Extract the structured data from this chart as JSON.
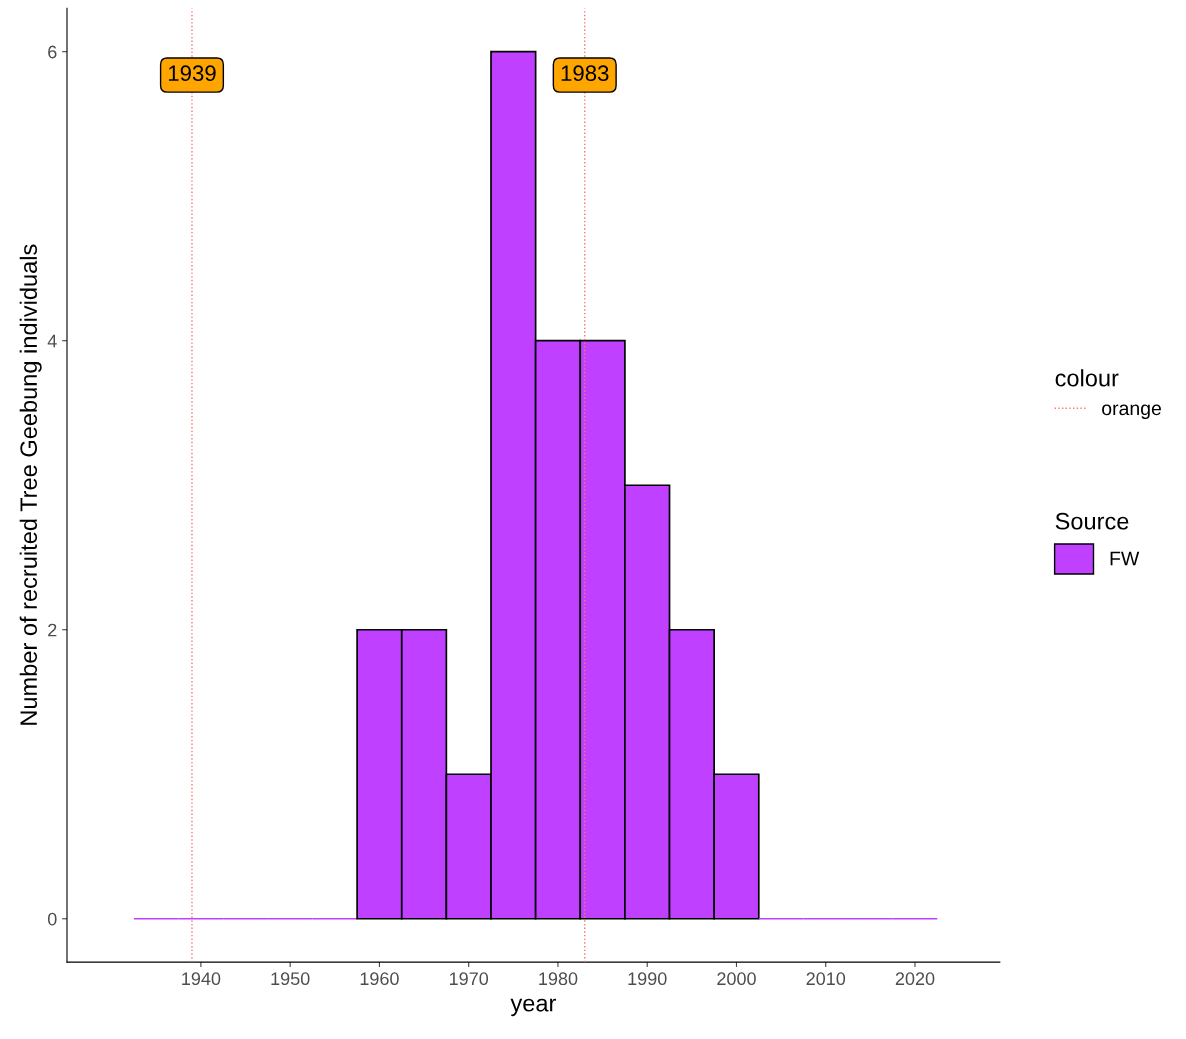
{
  "chart_data": {
    "type": "histogram",
    "xlabel": "year",
    "ylabel": "Number of recruited Tree Geebung individuals",
    "bins": [
      1932.5,
      1937.5,
      1942.5,
      1947.5,
      1952.5,
      1957.5,
      1962.5,
      1967.5,
      1972.5,
      1977.5,
      1982.5,
      1987.5,
      1992.5,
      1997.5,
      2002.5,
      2007.5,
      2012.5,
      2017.5,
      2022.5
    ],
    "series": [
      {
        "name": "FW",
        "color": "#bf40ff",
        "values": [
          0,
          0,
          0,
          0,
          0,
          2,
          2,
          1,
          6,
          4,
          4,
          3,
          2,
          1,
          0,
          0,
          0,
          0
        ]
      }
    ],
    "legend_title": "Source",
    "annotations": [
      "colour",
      "orange"
    ],
    "ref_lines": [
      {
        "axis": "x",
        "value": 1939,
        "label": "1939",
        "color": "#f8766d",
        "line_style": "dotted"
      },
      {
        "axis": "x",
        "value": 1983,
        "label": "1983",
        "color": "#f8766d",
        "line_style": "dotted"
      }
    ],
    "xlim": [
      1925,
      2029.5
    ],
    "ylim": [
      -0.3,
      6.3
    ],
    "xticks": [
      1940,
      1950,
      1960,
      1970,
      1980,
      1990,
      2000,
      2010,
      2020
    ],
    "yticks": [
      0,
      2,
      4,
      6
    ],
    "grid": false,
    "legend": "right"
  }
}
